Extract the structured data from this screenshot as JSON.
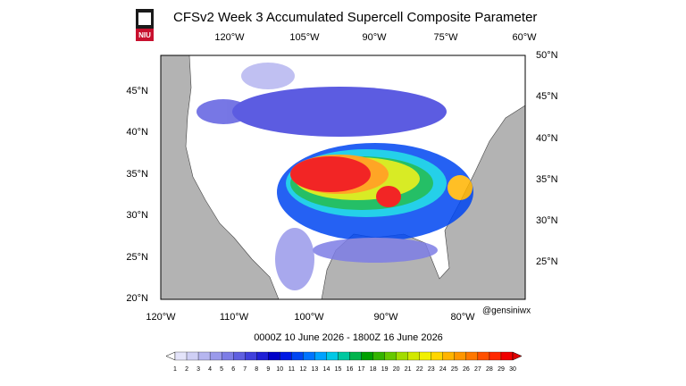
{
  "logo": "NIU",
  "title": "CFSv2 Week 3 Accumulated Supercell Composite Parameter",
  "top_labels": [
    "120°W",
    "105°W",
    "90°W",
    "75°W",
    "60°W"
  ],
  "right_labels": [
    "50°N",
    "45°N",
    "40°N",
    "35°N",
    "30°N",
    "25°N"
  ],
  "left_labels": [
    "45°N",
    "40°N",
    "35°N",
    "30°N",
    "25°N",
    "20°N"
  ],
  "bottom_labels": [
    "120°W",
    "110°W",
    "100°W",
    "90°W",
    "80°W"
  ],
  "credit": "@gensiniwx",
  "valid_time": "0000Z 10 June 2026  - 1800Z 16 June 2026",
  "colorbar": {
    "labels": [
      "1",
      "2",
      "3",
      "4",
      "5",
      "6",
      "7",
      "8",
      "9",
      "10",
      "11",
      "12",
      "13",
      "14",
      "15",
      "16",
      "17",
      "18",
      "19",
      "20",
      "21",
      "22",
      "23",
      "24",
      "25",
      "26",
      "27",
      "28",
      "29",
      "30"
    ],
    "colors": [
      "#ffffff",
      "#e4e4fa",
      "#cfcff5",
      "#b6b6f0",
      "#9a9aeb",
      "#7d7de6",
      "#5f5fe0",
      "#4040dc",
      "#2020d6",
      "#0000c8",
      "#0018e4",
      "#0046f2",
      "#0074ff",
      "#00a2ff",
      "#00c8e6",
      "#00c8a0",
      "#00b44c",
      "#00a000",
      "#34b400",
      "#66c800",
      "#a2dc00",
      "#d2e800",
      "#f2f000",
      "#ffd600",
      "#ffb400",
      "#ff9600",
      "#ff7800",
      "#ff5000",
      "#ff2800",
      "#f00000",
      "#e00000"
    ]
  }
}
